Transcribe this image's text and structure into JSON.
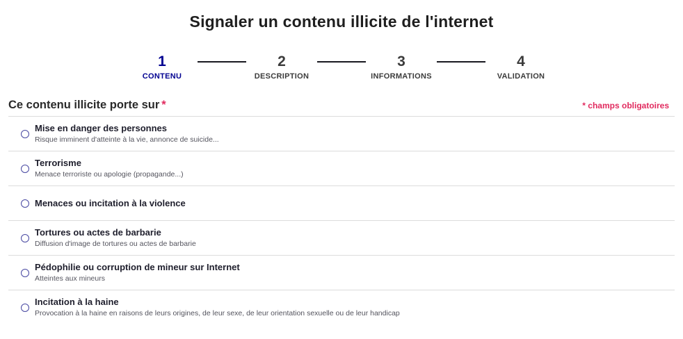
{
  "page": {
    "title": "Signaler un contenu illicite de l'internet"
  },
  "stepper": {
    "steps": [
      {
        "number": "1",
        "label": "CONTENU",
        "active": true
      },
      {
        "number": "2",
        "label": "DESCRIPTION",
        "active": false
      },
      {
        "number": "3",
        "label": "INFORMATIONS",
        "active": false
      },
      {
        "number": "4",
        "label": "VALIDATION",
        "active": false
      }
    ]
  },
  "form": {
    "question_label": "Ce contenu illicite porte sur",
    "required_marker": "*",
    "required_note": "* champs obligatoires",
    "options": [
      {
        "label": "Mise en danger des personnes",
        "description": "Risque imminent d'atteinte à la vie, annonce de suicide..."
      },
      {
        "label": "Terrorisme",
        "description": "Menace terroriste ou apologie (propagande...)"
      },
      {
        "label": "Menaces ou incitation à la violence",
        "description": ""
      },
      {
        "label": "Tortures ou actes de barbarie",
        "description": "Diffusion d'image de tortures ou actes de barbarie"
      },
      {
        "label": "Pédophilie ou corruption de mineur sur Internet",
        "description": "Atteintes aux mineurs"
      },
      {
        "label": "Incitation à la haine",
        "description": "Provocation à la haine en raisons de leurs origines, de leur sexe, de leur orientation sexuelle ou de leur handicap"
      }
    ]
  },
  "colors": {
    "accent_navy": "#000091",
    "required_pink": "#e12a5e",
    "text_dark": "#1e1e1e",
    "divider_gray": "#dcdcdc"
  }
}
